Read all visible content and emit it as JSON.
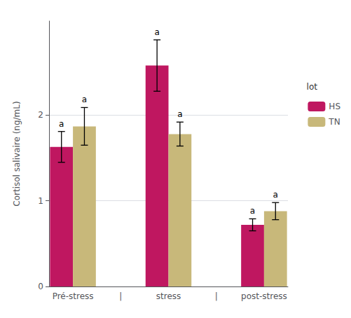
{
  "chart_data": {
    "type": "bar",
    "categories": [
      "Pré-stress",
      "|",
      "stress",
      "|",
      "post-stress"
    ],
    "series": [
      {
        "name": "HS",
        "color": "#bf1760",
        "values": [
          1.63,
          null,
          2.58,
          null,
          0.72
        ],
        "errors": [
          0.18,
          null,
          0.3,
          null,
          0.07
        ],
        "annotations": [
          "a",
          null,
          "a",
          null,
          "a"
        ]
      },
      {
        "name": "TN",
        "color": "#c8b87a",
        "values": [
          1.87,
          null,
          1.78,
          null,
          0.88
        ],
        "errors": [
          0.22,
          null,
          0.14,
          null,
          0.1
        ],
        "annotations": [
          "a",
          null,
          "a",
          null,
          "a"
        ]
      }
    ],
    "ylabel": "Cortisol salivaire (ng/mL)",
    "ylim": [
      0,
      3.1
    ],
    "yticks": [
      0,
      1,
      2
    ],
    "grid": true,
    "legend": "right",
    "legend_title": "lot"
  }
}
